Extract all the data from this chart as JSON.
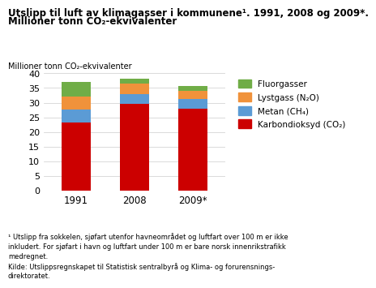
{
  "title_line1": "Utslipp til luft av klimagasser i kommunene¹. 1991, 2008 og 2009*.",
  "title_line2": "Millioner tonn CO₂-ekvivalenter",
  "ylabel": "Millioner tonn CO₂-ekvivalenter",
  "categories": [
    "1991",
    "2008",
    "2009*"
  ],
  "series": {
    "Karbondioksyd (CO₂)": {
      "values": [
        23.3,
        29.5,
        28.0
      ],
      "color": "#cc0000"
    },
    "Metan (CH₄)": {
      "values": [
        4.4,
        3.5,
        3.3
      ],
      "color": "#5b9bd5"
    },
    "Lystgass (N₂O)": {
      "values": [
        4.3,
        3.5,
        2.8
      ],
      "color": "#f0923b"
    },
    "Fluorgasser": {
      "values": [
        5.2,
        1.8,
        1.6
      ],
      "color": "#70ad47"
    }
  },
  "ylim": [
    0,
    40
  ],
  "yticks": [
    0,
    5,
    10,
    15,
    20,
    25,
    30,
    35,
    40
  ],
  "footnote": "¹ Utslipp fra sokkelen, sjøfart utenfor havneområdet og luftfart over 100 m er ikke\ninkludert. For sjøfart i havn og luftfart under 100 m er bare norsk innenrikstrafikk\nmedregnet.\nKilde: Utslippsregnskapet til Statistisk sentralbyrå og Klima- og forurensnings-\ndirektoratet.",
  "legend_order": [
    "Fluorgasser",
    "Lystgass (N₂O)",
    "Metan (CH₄)",
    "Karbondioksyd (CO₂)"
  ],
  "bar_width": 0.5
}
